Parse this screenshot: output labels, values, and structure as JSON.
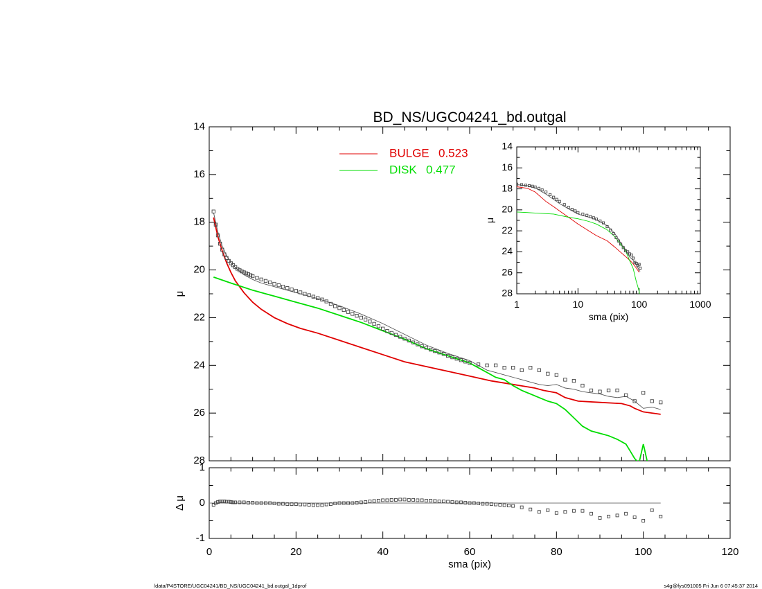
{
  "title": "BD_NS/UGC04241_bd.outgal",
  "footer": {
    "left": "/data/P4STORE/UGC04241/BD_NS/UGC04241_bd.outgal_1dprof",
    "right": "s4g@fys091005  Fri Jun  6 07:45:37 2014"
  },
  "colors": {
    "bulge": "#e00000",
    "disk": "#00dd00",
    "total": "#555555",
    "data": "#444444"
  },
  "chart_data": [
    {
      "id": "main",
      "type": "line",
      "xlabel": "",
      "ylabel": "μ",
      "xlim": [
        0,
        120
      ],
      "ylim": [
        28,
        14
      ],
      "y_inverted": true,
      "yticks": [
        14,
        16,
        18,
        20,
        22,
        24,
        26,
        28
      ],
      "legend": {
        "placement": "top-center",
        "entries": [
          {
            "label": "BULGE",
            "value": "0.523",
            "color": "#e00000"
          },
          {
            "label": "DISK",
            "value": "0.477",
            "color": "#00dd00"
          }
        ]
      },
      "series": [
        {
          "key": "bulge",
          "style": "line",
          "x": [
            1,
            2,
            3,
            4,
            5,
            6,
            8,
            10,
            12,
            15,
            18,
            21,
            25,
            30,
            35,
            40,
            45,
            50,
            55,
            60,
            65,
            70,
            75,
            77,
            80,
            82,
            85,
            90,
            95,
            97,
            98,
            100,
            102,
            104
          ],
          "y": [
            17.8,
            18.6,
            19.2,
            19.7,
            20.1,
            20.45,
            20.95,
            21.35,
            21.65,
            22.0,
            22.25,
            22.45,
            22.65,
            22.95,
            23.25,
            23.55,
            23.85,
            24.05,
            24.25,
            24.45,
            24.65,
            24.8,
            24.95,
            25.05,
            25.15,
            25.35,
            25.5,
            25.55,
            25.6,
            25.7,
            25.8,
            25.95,
            26.0,
            26.05
          ]
        },
        {
          "key": "disk",
          "style": "line",
          "x": [
            1,
            5,
            10,
            15,
            20,
            25,
            30,
            35,
            40,
            45,
            50,
            55,
            60,
            62,
            64,
            66,
            68,
            70,
            72,
            74,
            76,
            78,
            80,
            82,
            84,
            86,
            88,
            90,
            92,
            94,
            96,
            97,
            98,
            99,
            100,
            101
          ],
          "y": [
            20.3,
            20.55,
            20.85,
            21.1,
            21.35,
            21.6,
            21.9,
            22.2,
            22.55,
            22.9,
            23.3,
            23.6,
            23.9,
            24.1,
            24.3,
            24.5,
            24.6,
            24.85,
            25.05,
            25.2,
            25.35,
            25.5,
            25.6,
            25.85,
            26.2,
            26.55,
            26.75,
            26.85,
            26.95,
            27.1,
            27.3,
            27.6,
            27.9,
            28.1,
            27.3,
            28.1
          ]
        },
        {
          "key": "total",
          "style": "line",
          "x": [
            1,
            2,
            3,
            4,
            5,
            6,
            8,
            10,
            12,
            15,
            20,
            25,
            30,
            35,
            40,
            45,
            50,
            55,
            60,
            62,
            64,
            66,
            68,
            70,
            72,
            74,
            76,
            78,
            80,
            82,
            84,
            86,
            88,
            90,
            92,
            94,
            96,
            98,
            100,
            102,
            104
          ],
          "y": [
            17.6,
            18.4,
            19.0,
            19.4,
            19.7,
            19.9,
            20.2,
            20.4,
            20.55,
            20.7,
            20.95,
            21.2,
            21.5,
            21.85,
            22.25,
            22.7,
            23.15,
            23.5,
            23.8,
            24.0,
            24.2,
            24.3,
            24.4,
            24.5,
            24.6,
            24.7,
            24.8,
            24.85,
            24.8,
            24.95,
            25.0,
            25.1,
            25.15,
            25.2,
            25.3,
            25.35,
            25.3,
            25.5,
            25.8,
            25.75,
            25.85
          ]
        },
        {
          "key": "data",
          "style": "markers",
          "x": [
            1,
            1.5,
            2,
            2.5,
            3,
            3.5,
            4,
            4.5,
            5,
            5.5,
            6,
            6.5,
            7,
            7.5,
            8,
            8.5,
            9,
            9.5,
            10,
            11,
            12,
            13,
            14,
            15,
            16,
            17,
            18,
            19,
            20,
            21,
            22,
            23,
            24,
            25,
            26,
            27,
            28,
            29,
            30,
            31,
            32,
            33,
            34,
            35,
            36,
            37,
            38,
            39,
            40,
            41,
            42,
            43,
            44,
            45,
            46,
            47,
            48,
            49,
            50,
            51,
            52,
            53,
            54,
            55,
            56,
            57,
            58,
            59,
            60,
            62,
            64,
            66,
            68,
            70,
            72,
            74,
            76,
            78,
            80,
            82,
            84,
            86,
            88,
            90,
            92,
            94,
            96,
            98,
            100,
            102,
            104
          ],
          "y": [
            17.55,
            18.1,
            18.55,
            18.9,
            19.15,
            19.35,
            19.5,
            19.62,
            19.72,
            19.8,
            19.88,
            19.95,
            20.01,
            20.06,
            20.1,
            20.14,
            20.18,
            20.22,
            20.26,
            20.33,
            20.4,
            20.46,
            20.52,
            20.58,
            20.64,
            20.7,
            20.76,
            20.82,
            20.88,
            20.94,
            21.0,
            21.06,
            21.12,
            21.18,
            21.24,
            21.32,
            21.42,
            21.52,
            21.6,
            21.68,
            21.76,
            21.84,
            21.92,
            22.0,
            22.08,
            22.16,
            22.26,
            22.36,
            22.46,
            22.56,
            22.64,
            22.72,
            22.8,
            22.88,
            22.96,
            23.04,
            23.12,
            23.2,
            23.26,
            23.34,
            23.4,
            23.46,
            23.52,
            23.6,
            23.66,
            23.72,
            23.78,
            23.84,
            23.9,
            23.96,
            24.0,
            24.0,
            24.1,
            24.1,
            24.2,
            24.1,
            24.2,
            24.35,
            24.4,
            24.6,
            24.65,
            24.85,
            25.05,
            25.1,
            25.05,
            25.05,
            25.25,
            25.5,
            25.15,
            25.5,
            25.55
          ]
        }
      ]
    },
    {
      "id": "inset",
      "type": "line",
      "xlabel": "sma (pix)",
      "ylabel": "μ",
      "x_scale": "log",
      "xlim": [
        1,
        1000
      ],
      "ylim": [
        28,
        14
      ],
      "y_inverted": true,
      "xticks": [
        "1",
        "10",
        "100",
        "1000"
      ],
      "yticks": [
        14,
        16,
        18,
        20,
        22,
        24,
        26,
        28
      ],
      "series": [
        {
          "key": "bulge",
          "style": "line",
          "x": [
            1,
            1.5,
            2,
            3,
            4,
            5,
            7,
            10,
            15,
            20,
            30,
            40,
            50,
            60,
            70,
            80,
            90,
            100
          ],
          "y": [
            17.8,
            17.95,
            18.3,
            19.2,
            19.7,
            20.1,
            20.7,
            21.35,
            22.0,
            22.45,
            22.95,
            23.55,
            24.05,
            24.45,
            24.8,
            25.15,
            25.55,
            25.95
          ]
        },
        {
          "key": "disk",
          "style": "line",
          "x": [
            1,
            2,
            4,
            7,
            10,
            15,
            20,
            30,
            40,
            50,
            60,
            70,
            80,
            90,
            95,
            100,
            101
          ],
          "y": [
            20.2,
            20.3,
            20.4,
            20.7,
            20.85,
            21.1,
            21.35,
            21.9,
            22.55,
            23.3,
            23.9,
            24.85,
            25.6,
            26.85,
            27.3,
            27.8,
            28.0
          ]
        },
        {
          "key": "total",
          "style": "line",
          "x": [
            1,
            1.5,
            2,
            3,
            4,
            5,
            7,
            10,
            15,
            20,
            30,
            40,
            50,
            60,
            70,
            80,
            90,
            100,
            104
          ],
          "y": [
            17.6,
            17.7,
            17.9,
            18.5,
            19.0,
            19.4,
            19.9,
            20.4,
            20.7,
            20.95,
            21.5,
            22.25,
            23.15,
            23.8,
            24.5,
            24.8,
            25.2,
            25.8,
            25.85
          ]
        },
        {
          "key": "data",
          "style": "markers",
          "x": [
            1,
            1.2,
            1.4,
            1.6,
            1.8,
            2,
            2.3,
            2.6,
            3,
            3.5,
            4,
            4.5,
            5,
            6,
            7,
            8,
            9,
            10,
            12,
            14,
            16,
            18,
            20,
            23,
            26,
            30,
            34,
            38,
            42,
            46,
            50,
            55,
            60,
            65,
            70,
            75,
            80,
            85,
            90,
            95,
            100,
            104
          ],
          "y": [
            17.55,
            17.6,
            17.65,
            17.7,
            17.75,
            17.82,
            17.95,
            18.1,
            18.3,
            18.55,
            18.8,
            19.0,
            19.2,
            19.5,
            19.75,
            19.95,
            20.1,
            20.26,
            20.4,
            20.52,
            20.64,
            20.76,
            20.88,
            21.06,
            21.24,
            21.6,
            21.92,
            22.26,
            22.64,
            22.96,
            23.26,
            23.6,
            23.9,
            24.0,
            24.2,
            24.3,
            24.6,
            25.0,
            25.1,
            25.3,
            25.2,
            25.55
          ]
        }
      ]
    },
    {
      "id": "residual",
      "type": "scatter",
      "xlabel": "sma (pix)",
      "ylabel": "Δ μ",
      "xlim": [
        0,
        120
      ],
      "ylim": [
        -1,
        1
      ],
      "xticks": [
        0,
        20,
        40,
        60,
        80,
        100,
        120
      ],
      "yticks": [
        -1,
        0,
        1
      ],
      "zero_line": {
        "x": [
          0,
          104
        ],
        "y": 0
      },
      "series": [
        {
          "key": "data",
          "style": "markers",
          "x": [
            1,
            1.5,
            2,
            2.5,
            3,
            3.5,
            4,
            4.5,
            5,
            5.5,
            6,
            7,
            8,
            9,
            10,
            11,
            12,
            13,
            14,
            15,
            16,
            17,
            18,
            19,
            20,
            21,
            22,
            23,
            24,
            25,
            26,
            27,
            28,
            29,
            30,
            31,
            32,
            33,
            34,
            35,
            36,
            37,
            38,
            39,
            40,
            41,
            42,
            43,
            44,
            45,
            46,
            47,
            48,
            49,
            50,
            51,
            52,
            53,
            54,
            55,
            56,
            57,
            58,
            59,
            60,
            61,
            62,
            63,
            64,
            65,
            66,
            67,
            68,
            69,
            70,
            72,
            74,
            76,
            78,
            80,
            82,
            84,
            86,
            88,
            90,
            92,
            94,
            96,
            98,
            100,
            102,
            104
          ],
          "y": [
            -0.05,
            0.0,
            0.03,
            0.05,
            0.05,
            0.05,
            0.04,
            0.04,
            0.03,
            0.02,
            0.02,
            0.02,
            0.02,
            0.01,
            0.01,
            0.0,
            0.0,
            0.0,
            0.0,
            -0.01,
            -0.02,
            -0.02,
            -0.03,
            -0.03,
            -0.03,
            -0.04,
            -0.04,
            -0.05,
            -0.06,
            -0.06,
            -0.06,
            -0.04,
            -0.03,
            -0.01,
            0.0,
            0.0,
            0.0,
            0.0,
            0.01,
            0.02,
            0.03,
            0.05,
            0.06,
            0.07,
            0.08,
            0.08,
            0.09,
            0.09,
            0.1,
            0.1,
            0.09,
            0.09,
            0.08,
            0.08,
            0.07,
            0.07,
            0.06,
            0.05,
            0.05,
            0.04,
            0.03,
            0.02,
            0.02,
            0.01,
            0.0,
            0.0,
            -0.01,
            -0.02,
            -0.02,
            -0.03,
            -0.04,
            -0.05,
            -0.06,
            -0.07,
            -0.08,
            -0.12,
            -0.18,
            -0.25,
            -0.2,
            -0.28,
            -0.25,
            -0.22,
            -0.22,
            -0.3,
            -0.42,
            -0.38,
            -0.35,
            -0.3,
            -0.4,
            -0.5,
            -0.2,
            -0.38
          ]
        }
      ]
    }
  ]
}
